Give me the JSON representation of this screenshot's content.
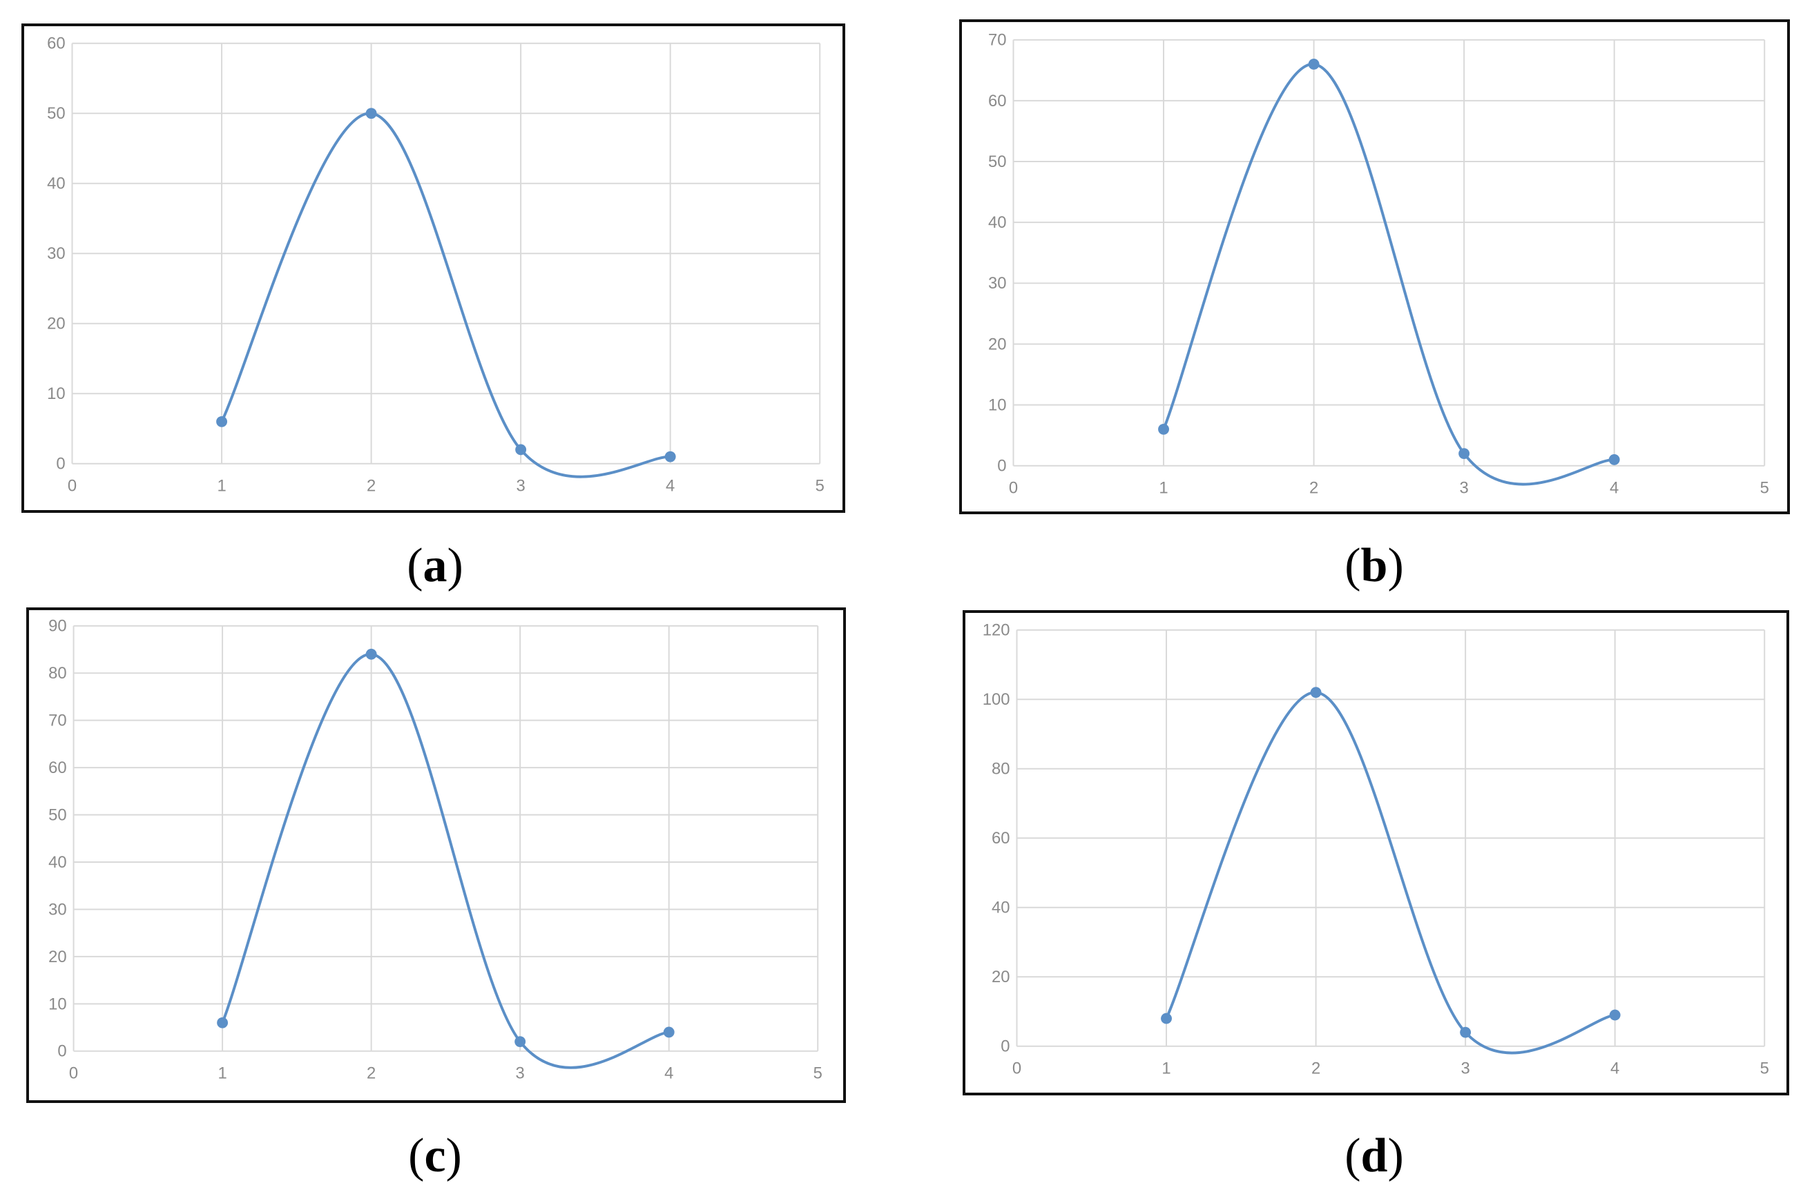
{
  "colors": {
    "series": "#5b8fc7",
    "grid": "#d9d9d9",
    "tick_text": "#8a8a8a",
    "frame": "#111111"
  },
  "chart_data": [
    {
      "panel": "a",
      "caption_letter": "a",
      "type": "line",
      "smooth": true,
      "markers": true,
      "grid": true,
      "title": "",
      "xlabel": "",
      "ylabel": "",
      "xlim": [
        0,
        5
      ],
      "ylim": [
        0,
        60
      ],
      "xticks": [
        0,
        1,
        2,
        3,
        4,
        5
      ],
      "yticks": [
        0,
        10,
        20,
        30,
        40,
        50,
        60
      ],
      "series": [
        {
          "x": [
            1,
            2,
            3,
            4
          ],
          "y": [
            6,
            50,
            2,
            1
          ]
        }
      ]
    },
    {
      "panel": "b",
      "caption_letter": "b",
      "type": "line",
      "smooth": true,
      "markers": true,
      "grid": true,
      "title": "",
      "xlabel": "",
      "ylabel": "",
      "xlim": [
        0,
        5
      ],
      "ylim": [
        0,
        70
      ],
      "xticks": [
        0,
        1,
        2,
        3,
        4,
        5
      ],
      "yticks": [
        0,
        10,
        20,
        30,
        40,
        50,
        60,
        70
      ],
      "series": [
        {
          "x": [
            1,
            2,
            3,
            4
          ],
          "y": [
            6,
            66,
            2,
            1
          ]
        }
      ]
    },
    {
      "panel": "c",
      "caption_letter": "c",
      "type": "line",
      "smooth": true,
      "markers": true,
      "grid": true,
      "title": "",
      "xlabel": "",
      "ylabel": "",
      "xlim": [
        0,
        5
      ],
      "ylim": [
        0,
        90
      ],
      "xticks": [
        0,
        1,
        2,
        3,
        4,
        5
      ],
      "yticks": [
        0,
        10,
        20,
        30,
        40,
        50,
        60,
        70,
        80,
        90
      ],
      "series": [
        {
          "x": [
            1,
            2,
            3,
            4
          ],
          "y": [
            6,
            84,
            2,
            4
          ]
        }
      ]
    },
    {
      "panel": "d",
      "caption_letter": "d",
      "type": "line",
      "smooth": true,
      "markers": true,
      "grid": true,
      "title": "",
      "xlabel": "",
      "ylabel": "",
      "xlim": [
        0,
        5
      ],
      "ylim": [
        0,
        120
      ],
      "xticks": [
        0,
        1,
        2,
        3,
        4,
        5
      ],
      "yticks": [
        0,
        20,
        40,
        60,
        80,
        100,
        120
      ],
      "series": [
        {
          "x": [
            1,
            2,
            3,
            4
          ],
          "y": [
            8,
            102,
            4,
            9
          ]
        }
      ]
    }
  ]
}
